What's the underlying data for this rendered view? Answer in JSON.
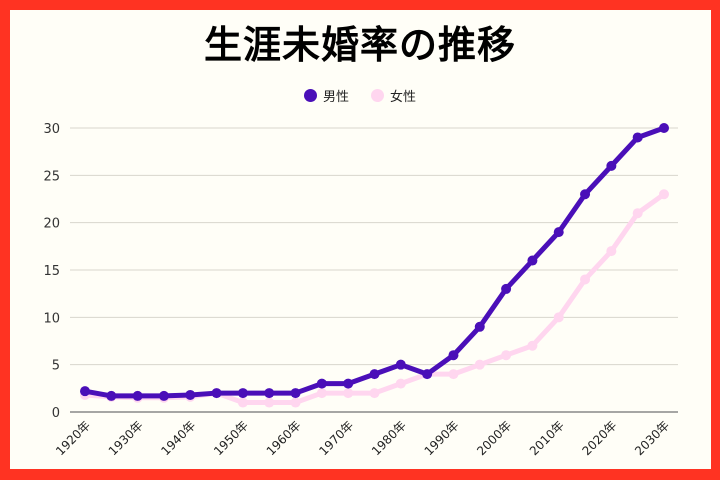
{
  "chart_data": {
    "type": "line",
    "title": "生涯未婚率の推移",
    "xlabel": "",
    "ylabel": "",
    "ylim": [
      0,
      30
    ],
    "yticks": [
      0,
      5,
      10,
      15,
      20,
      25,
      30
    ],
    "grid": true,
    "legend_position": "top",
    "x": [
      1920,
      1925,
      1930,
      1935,
      1940,
      1945,
      1950,
      1955,
      1960,
      1965,
      1970,
      1975,
      1980,
      1985,
      1990,
      1995,
      2000,
      2005,
      2010,
      2015,
      2020,
      2025,
      2030
    ],
    "xtick_labels": [
      "1920年",
      "1930年",
      "1940年",
      "1950年",
      "1960年",
      "1970年",
      "1980年",
      "1990年",
      "2000年",
      "2010年",
      "2020年",
      "2030年"
    ],
    "series": [
      {
        "name": "男性",
        "color": "#4a0fb8",
        "values": [
          2.2,
          1.7,
          1.7,
          1.7,
          1.8,
          2.0,
          2,
          2,
          2,
          3,
          3,
          4,
          5,
          4,
          6,
          9,
          13,
          16,
          19,
          23,
          26,
          29,
          30
        ]
      },
      {
        "name": "女性",
        "color": "#ffd6ef",
        "values": [
          1.8,
          1.6,
          1.5,
          1.5,
          1.6,
          2.0,
          1,
          1,
          1,
          2,
          2,
          2,
          3,
          4,
          4,
          5,
          6,
          7,
          10,
          14,
          17,
          21,
          23
        ]
      }
    ]
  },
  "colors": {
    "border": "#ff3322",
    "background": "#fffef7",
    "grid": "#d8d6cc",
    "axis": "#888888"
  }
}
